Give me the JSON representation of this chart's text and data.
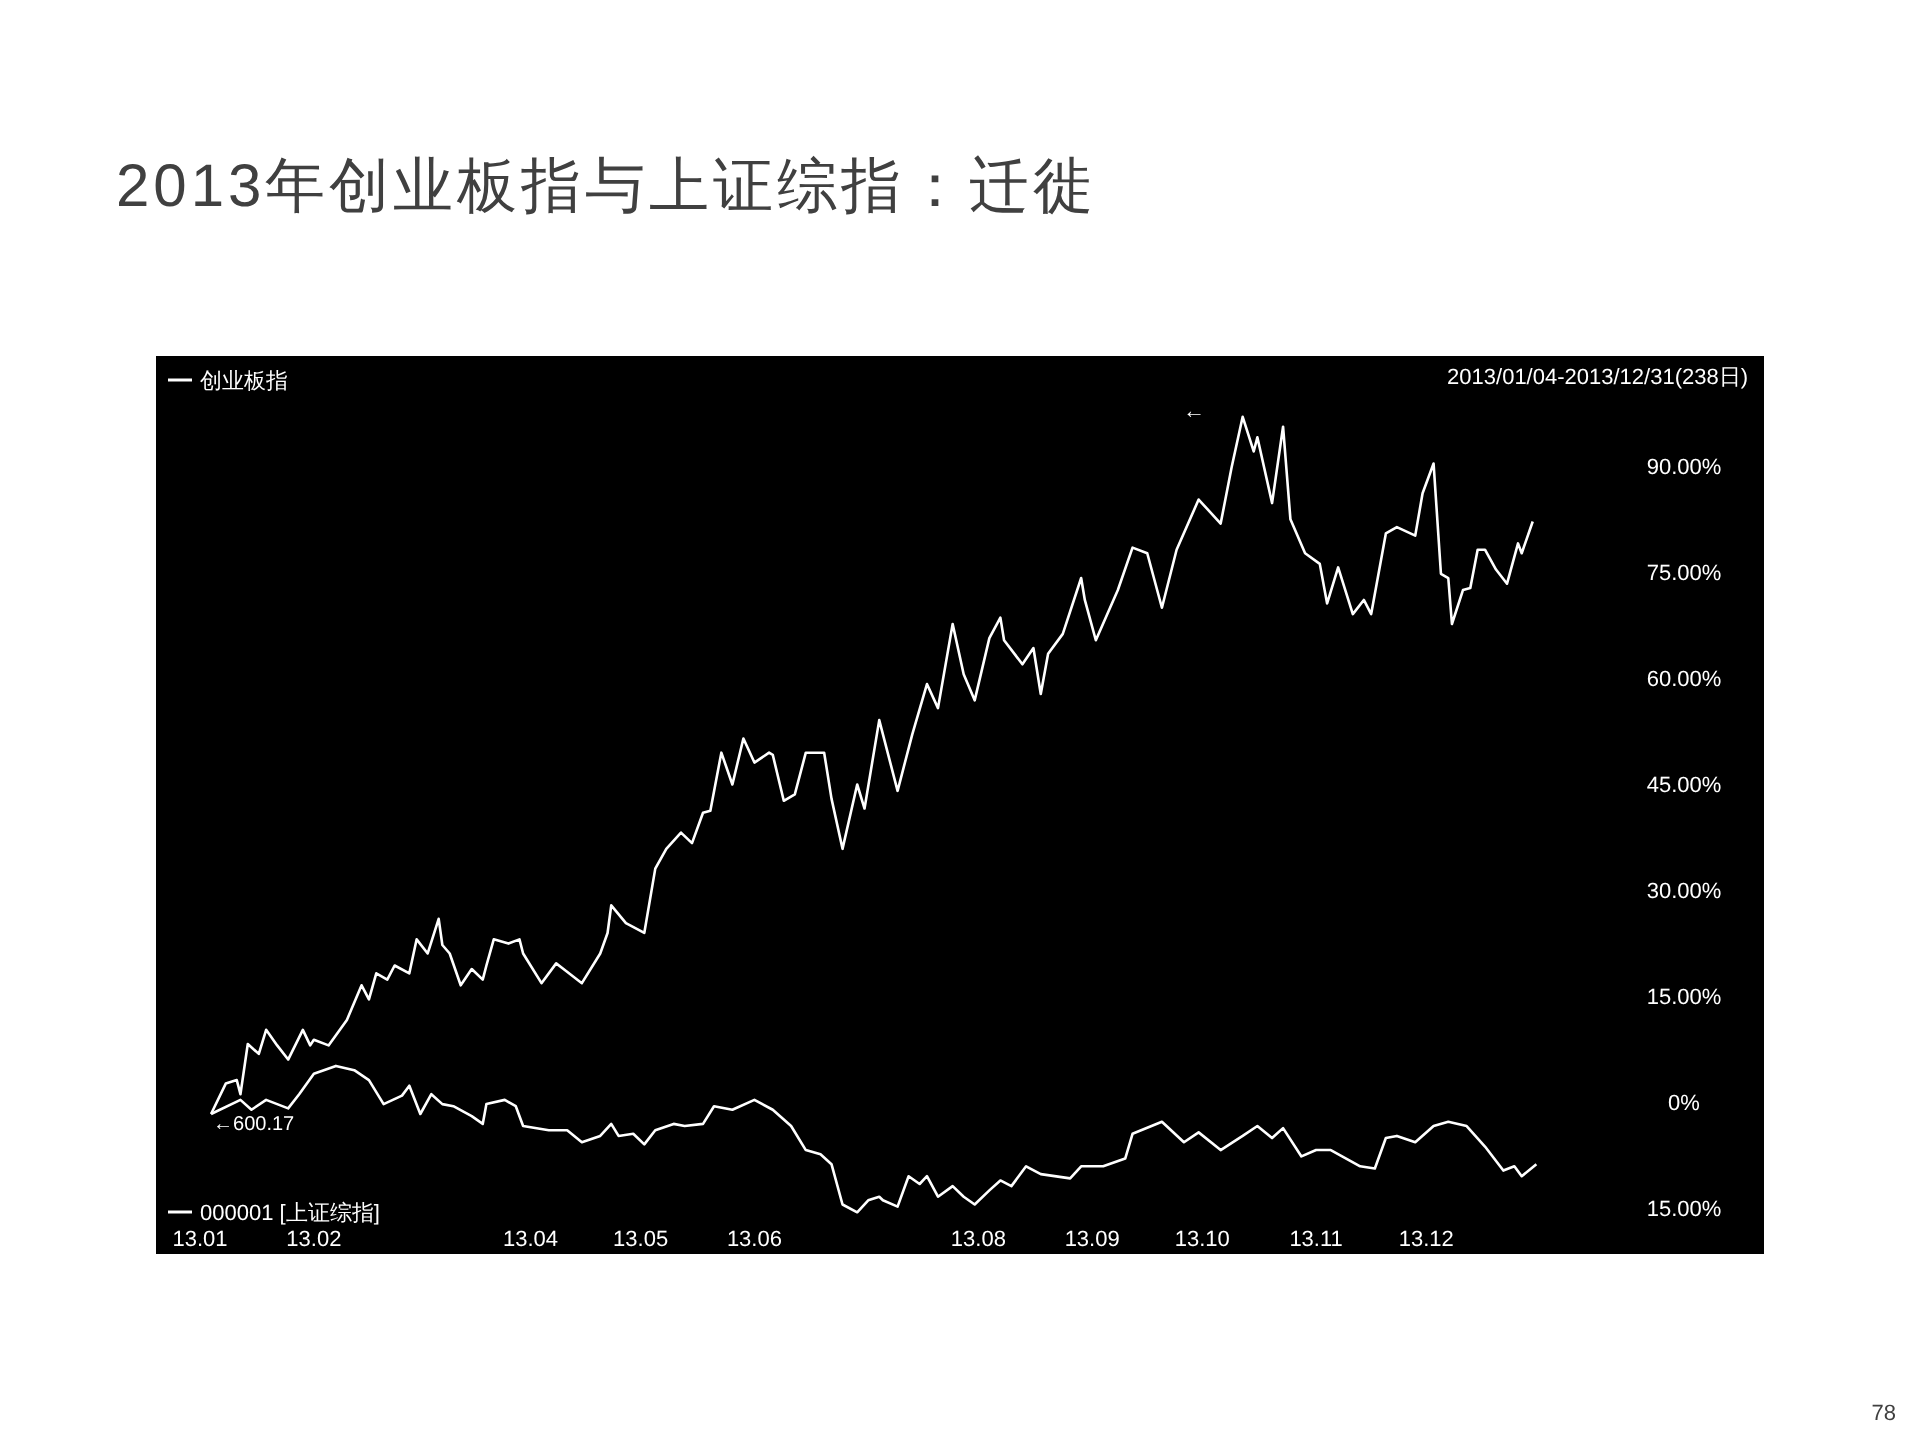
{
  "chart_data": {
    "type": "line",
    "title": "2013年创业板指与上证综指：迁徙",
    "legend": "left",
    "xlim": [
      "2012-12-20",
      "2014-03-03"
    ],
    "xticks": [
      {
        "value": "2013-01",
        "label": "13.01"
      },
      {
        "value": "2013-02",
        "label": "13.02"
      },
      {
        "value": "2013-04",
        "label": "13.04"
      },
      {
        "value": "2013-05",
        "label": "13.05"
      },
      {
        "value": "2013-06",
        "label": "13.06"
      },
      {
        "value": "2013-08",
        "label": "13.08"
      },
      {
        "value": "2013-09",
        "label": "13.09"
      },
      {
        "value": "2013-10",
        "label": "13.10"
      },
      {
        "value": "2013-11",
        "label": "13.11"
      },
      {
        "value": "2013-12",
        "label": "13.12"
      }
    ],
    "ylim": [
      -21.5,
      105.5
    ],
    "yticks": [
      {
        "value": 90,
        "label": "90.00%"
      },
      {
        "value": 75,
        "label": "75.00%"
      },
      {
        "value": 60,
        "label": "60.00%"
      },
      {
        "value": 45,
        "label": "45.00%"
      },
      {
        "value": 30,
        "label": "30.00%"
      },
      {
        "value": 15,
        "label": "15.00%"
      },
      {
        "value": 0,
        "label": "0%"
      },
      {
        "value": -15,
        "label": "15.00%"
      }
    ],
    "series": [
      {
        "name": "创业板指",
        "color": "#ffffff",
        "x": [
          "2013-01-04",
          "2013-01-08",
          "2013-01-11",
          "2013-01-12",
          "2013-01-14",
          "2013-01-17",
          "2013-01-19",
          "2013-01-22",
          "2013-01-25",
          "2013-01-29",
          "2013-01-31",
          "2013-02-01",
          "2013-02-05",
          "2013-02-10",
          "2013-02-14",
          "2013-02-16",
          "2013-02-18",
          "2013-02-21",
          "2013-02-23",
          "2013-02-27",
          "2013-03-01",
          "2013-03-04",
          "2013-03-07",
          "2013-03-08",
          "2013-03-10",
          "2013-03-13",
          "2013-03-16",
          "2013-03-19",
          "2013-03-20",
          "2013-03-22",
          "2013-03-26",
          "2013-03-29",
          "2013-03-30",
          "2013-04-04",
          "2013-04-08",
          "2013-04-10",
          "2013-04-15",
          "2013-04-20",
          "2013-04-22",
          "2013-04-23",
          "2013-04-27",
          "2013-05-02",
          "2013-05-05",
          "2013-05-08",
          "2013-05-12",
          "2013-05-15",
          "2013-05-18",
          "2013-05-20",
          "2013-05-23",
          "2013-05-26",
          "2013-05-29",
          "2013-06-01",
          "2013-06-05",
          "2013-06-06",
          "2013-06-09",
          "2013-06-12",
          "2013-06-15",
          "2013-06-20",
          "2013-06-22",
          "2013-06-25",
          "2013-06-29",
          "2013-07-01",
          "2013-07-05",
          "2013-07-10",
          "2013-07-14",
          "2013-07-18",
          "2013-07-21",
          "2013-07-25",
          "2013-07-28",
          "2013-07-31",
          "2013-08-04",
          "2013-08-07",
          "2013-08-08",
          "2013-08-13",
          "2013-08-16",
          "2013-08-18",
          "2013-08-20",
          "2013-08-24",
          "2013-08-29",
          "2013-08-30",
          "2013-09-02",
          "2013-09-08",
          "2013-09-12",
          "2013-09-16",
          "2013-09-20",
          "2013-09-24",
          "2013-09-30",
          "2013-10-06",
          "2013-10-09",
          "2013-10-12",
          "2013-10-15",
          "2013-10-16",
          "2013-10-20",
          "2013-10-23",
          "2013-10-25",
          "2013-10-29",
          "2013-11-02",
          "2013-11-04",
          "2013-11-07",
          "2013-11-11",
          "2013-11-14",
          "2013-11-16",
          "2013-11-20",
          "2013-11-23",
          "2013-11-28",
          "2013-11-30",
          "2013-12-03",
          "2013-12-05",
          "2013-12-07",
          "2013-12-08",
          "2013-12-11",
          "2013-12-13",
          "2013-12-15",
          "2013-12-17",
          "2013-12-20",
          "2013-12-23",
          "2013-12-26",
          "2013-12-27",
          "2013-12-30"
        ],
        "values": [
          -1.7,
          2.6,
          3.1,
          1.1,
          8.2,
          6.8,
          10.2,
          8.0,
          6.0,
          10.2,
          8.0,
          8.8,
          8.0,
          11.6,
          16.5,
          14.5,
          18.2,
          17.3,
          19.3,
          18.2,
          23.0,
          21.0,
          25.9,
          22.2,
          21.0,
          16.5,
          18.8,
          17.3,
          19.3,
          23.0,
          22.4,
          23.0,
          21.0,
          16.8,
          19.6,
          18.8,
          16.8,
          21.0,
          23.9,
          27.8,
          25.3,
          23.9,
          33.0,
          35.8,
          38.1,
          36.6,
          40.9,
          41.2,
          49.4,
          44.9,
          51.4,
          48.0,
          49.4,
          49.1,
          42.6,
          43.5,
          49.4,
          49.4,
          42.9,
          35.8,
          44.9,
          41.5,
          54.0,
          44.0,
          52.0,
          59.1,
          55.7,
          67.6,
          60.5,
          56.8,
          65.6,
          68.5,
          65.3,
          61.9,
          64.2,
          57.7,
          63.4,
          66.2,
          74.1,
          71.0,
          65.3,
          72.4,
          78.4,
          77.6,
          69.9,
          78.1,
          85.2,
          81.8,
          89.8,
          96.9,
          92.0,
          94.0,
          84.7,
          95.5,
          82.4,
          77.6,
          76.1,
          70.5,
          75.6,
          69.0,
          71.0,
          69.0,
          80.4,
          81.3,
          80.1,
          86.1,
          90.3,
          74.7,
          74.1,
          67.6,
          72.4,
          72.7,
          78.1,
          78.1,
          75.3,
          73.3,
          79.0,
          77.6,
          82.1
        ]
      },
      {
        "name": "000001 [上证综指]",
        "color": "#ffffff",
        "x": [
          "2013-01-04",
          "2013-01-12",
          "2013-01-15",
          "2013-01-19",
          "2013-01-25",
          "2013-01-28",
          "2013-02-01",
          "2013-02-07",
          "2013-02-12",
          "2013-02-16",
          "2013-02-20",
          "2013-02-25",
          "2013-02-27",
          "2013-03-02",
          "2013-03-05",
          "2013-03-08",
          "2013-03-11",
          "2013-03-16",
          "2013-03-19",
          "2013-03-20",
          "2013-03-25",
          "2013-03-28",
          "2013-03-30",
          "2013-04-06",
          "2013-04-11",
          "2013-04-15",
          "2013-04-20",
          "2013-04-23",
          "2013-04-25",
          "2013-04-29",
          "2013-05-02",
          "2013-05-05",
          "2013-05-10",
          "2013-05-13",
          "2013-05-18",
          "2013-05-21",
          "2013-05-26",
          "2013-06-01",
          "2013-06-06",
          "2013-06-11",
          "2013-06-15",
          "2013-06-19",
          "2013-06-22",
          "2013-06-25",
          "2013-06-29",
          "2013-07-02",
          "2013-07-05",
          "2013-07-06",
          "2013-07-10",
          "2013-07-13",
          "2013-07-16",
          "2013-07-18",
          "2013-07-21",
          "2013-07-25",
          "2013-07-28",
          "2013-07-31",
          "2013-08-04",
          "2013-08-07",
          "2013-08-10",
          "2013-08-14",
          "2013-08-18",
          "2013-08-26",
          "2013-08-29",
          "2013-09-04",
          "2013-09-10",
          "2013-09-12",
          "2013-09-20",
          "2013-09-26",
          "2013-09-30",
          "2013-10-06",
          "2013-10-12",
          "2013-10-16",
          "2013-10-20",
          "2013-10-23",
          "2013-10-28",
          "2013-11-01",
          "2013-11-05",
          "2013-11-13",
          "2013-11-17",
          "2013-11-20",
          "2013-11-23",
          "2013-11-28",
          "2013-12-03",
          "2013-12-07",
          "2013-12-12",
          "2013-12-17",
          "2013-12-22",
          "2013-12-25",
          "2013-12-27",
          "2013-12-31"
        ],
        "values": [
          -1.7,
          0.3,
          -1.1,
          0.3,
          -0.9,
          1.1,
          4.0,
          5.1,
          4.5,
          3.1,
          -0.3,
          0.9,
          2.3,
          -1.7,
          1.1,
          -0.3,
          -0.6,
          -2.0,
          -3.1,
          -0.3,
          0.3,
          -0.6,
          -3.4,
          -4.0,
          -4.0,
          -5.7,
          -4.8,
          -3.1,
          -4.8,
          -4.5,
          -6.0,
          -4.0,
          -3.1,
          -3.4,
          -3.1,
          -0.6,
          -1.1,
          0.3,
          -1.1,
          -3.4,
          -6.8,
          -7.4,
          -8.8,
          -14.5,
          -15.6,
          -13.9,
          -13.4,
          -13.9,
          -14.8,
          -10.5,
          -11.6,
          -10.5,
          -13.4,
          -11.9,
          -13.4,
          -14.5,
          -12.5,
          -11.1,
          -11.9,
          -9.1,
          -10.2,
          -10.8,
          -9.1,
          -9.1,
          -8.0,
          -4.5,
          -2.8,
          -5.7,
          -4.3,
          -6.8,
          -4.8,
          -3.4,
          -5.1,
          -3.7,
          -7.7,
          -6.8,
          -6.8,
          -9.1,
          -9.4,
          -5.1,
          -4.8,
          -5.7,
          -3.4,
          -2.8,
          -3.4,
          -6.3,
          -9.7,
          -9.1,
          -10.5,
          -8.8
        ]
      }
    ],
    "annotations": [
      "2013/01/04-2013/12/31(238日)",
      "78",
      {
        "text": "←600.17",
        "x": "2013-01-04",
        "y": -1.7
      },
      "←"
    ]
  }
}
